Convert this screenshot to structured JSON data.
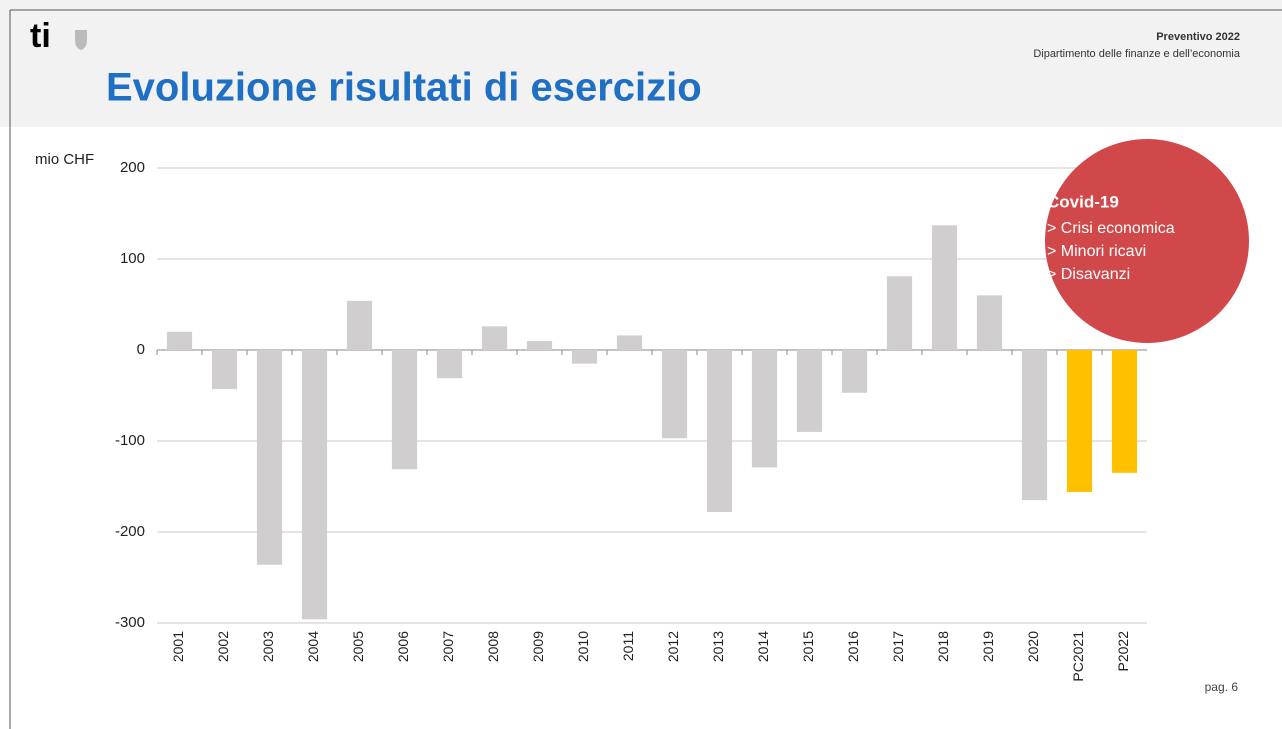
{
  "logo": "ti",
  "header": {
    "title": "Evoluzione risultati di esercizio",
    "subtitle": "Preventivo 2022",
    "department": "Dipartimento delle finanze e dell’economia"
  },
  "page": "pag. 6",
  "chart_data": {
    "type": "bar",
    "y_label": "mio CHF",
    "categories": [
      "2001",
      "2002",
      "2003",
      "2004",
      "2005",
      "2006",
      "2007",
      "2008",
      "2009",
      "2010",
      "2011",
      "2012",
      "2013",
      "2014",
      "2015",
      "2016",
      "2017",
      "2018",
      "2019",
      "2020",
      "PC2021",
      "P2022"
    ],
    "values": [
      20,
      -43,
      -236,
      -296,
      54,
      -131,
      -31,
      26,
      10,
      -15,
      16,
      -97,
      -178,
      -129,
      -90,
      -47,
      81,
      137,
      60,
      -165,
      -156,
      -135
    ],
    "colors": [
      "#d0cece",
      "#d0cece",
      "#d0cece",
      "#d0cece",
      "#d0cece",
      "#d0cece",
      "#d0cece",
      "#d0cece",
      "#d0cece",
      "#d0cece",
      "#d0cece",
      "#d0cece",
      "#d0cece",
      "#d0cece",
      "#d0cece",
      "#d0cece",
      "#d0cece",
      "#d0cece",
      "#d0cece",
      "#d0cece",
      "#ffc000",
      "#ffc000"
    ],
    "ylim": [
      -300,
      200
    ],
    "yticks": [
      -300,
      -200,
      -100,
      0,
      100,
      200
    ],
    "grid": true,
    "annotation": {
      "title": "Covid-19",
      "lines": [
        "> Crisi economica",
        "> Minori ricavi",
        "> Disavanzi"
      ],
      "color": "#d0484a"
    }
  }
}
